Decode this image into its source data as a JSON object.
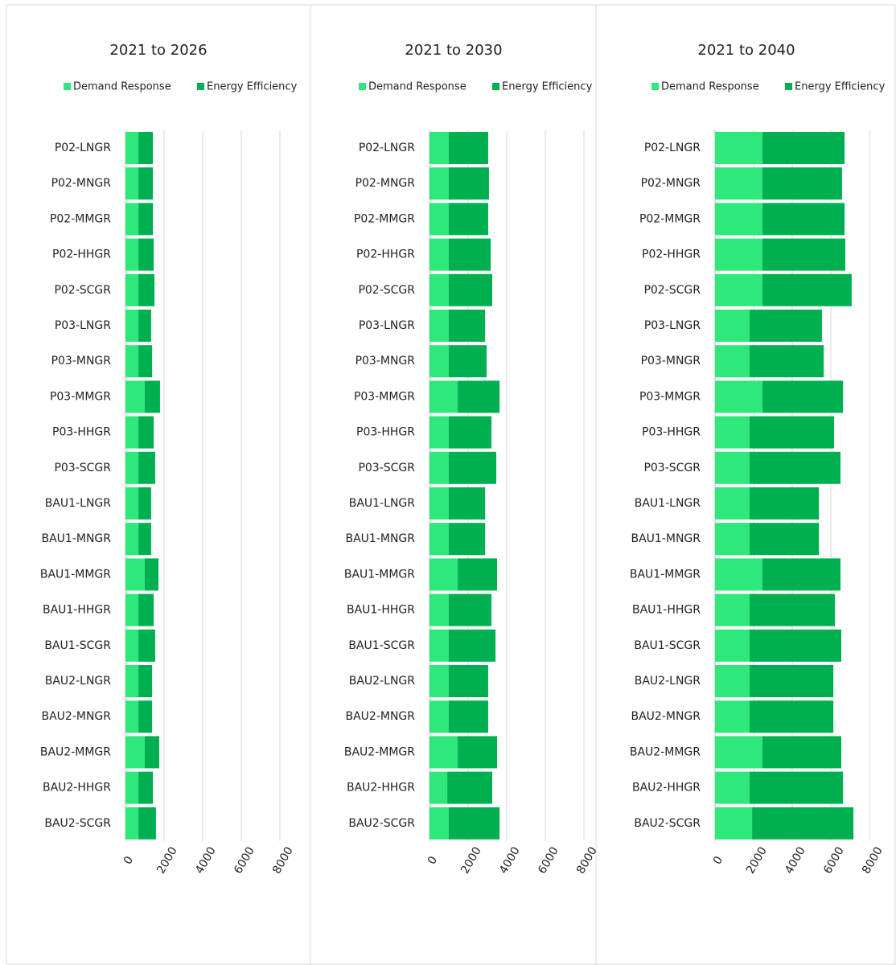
{
  "chart_data": [
    {
      "type": "hbar-stacked",
      "title": "2021 to 2026",
      "categories": [
        "P02-LNGR",
        "P02-MNGR",
        "P02-MMGR",
        "P02-HHGR",
        "P02-SCGR",
        "P03-LNGR",
        "P03-MNGR",
        "P03-MMGR",
        "P03-HHGR",
        "P03-SCGR",
        "BAU1-LNGR",
        "BAU1-MNGR",
        "BAU1-MMGR",
        "BAU1-HHGR",
        "BAU1-SCGR",
        "BAU2-LNGR",
        "BAU2-MNGR",
        "BAU2-MMGR",
        "BAU2-HHGR",
        "BAU2-SCGR"
      ],
      "series": [
        {
          "name": "Demand Response",
          "color": "#2ee87a",
          "values": [
            670,
            670,
            670,
            670,
            670,
            670,
            670,
            1000,
            670,
            670,
            670,
            670,
            1000,
            670,
            670,
            670,
            670,
            1000,
            670,
            670
          ]
        },
        {
          "name": "Energy Efficiency",
          "color": "#00b050",
          "values": [
            750,
            750,
            750,
            790,
            830,
            660,
            710,
            790,
            790,
            870,
            660,
            660,
            710,
            790,
            870,
            710,
            710,
            750,
            750,
            910
          ]
        }
      ],
      "xlim": [
        0,
        8000
      ],
      "xticks": [
        0,
        2000,
        4000,
        6000,
        8000
      ],
      "grid": true,
      "legend": "top"
    },
    {
      "type": "hbar-stacked",
      "title": "2021 to 2030",
      "categories": [
        "P02-LNGR",
        "P02-MNGR",
        "P02-MMGR",
        "P02-HHGR",
        "P02-SCGR",
        "P03-LNGR",
        "P03-MNGR",
        "P03-MMGR",
        "P03-HHGR",
        "P03-SCGR",
        "BAU1-LNGR",
        "BAU1-MNGR",
        "BAU1-MMGR",
        "BAU1-HHGR",
        "BAU1-SCGR",
        "BAU2-LNGR",
        "BAU2-MNGR",
        "BAU2-MMGR",
        "BAU2-HHGR",
        "BAU2-SCGR"
      ],
      "series": [
        {
          "name": "Demand Response",
          "color": "#2ee87a",
          "values": [
            1000,
            1000,
            1000,
            1000,
            1000,
            1000,
            1000,
            1460,
            1000,
            1000,
            1000,
            1000,
            1460,
            1000,
            1000,
            1000,
            1000,
            1460,
            920,
            1000
          ]
        },
        {
          "name": "Energy Efficiency",
          "color": "#00b050",
          "values": [
            2040,
            2080,
            2040,
            2170,
            2250,
            1880,
            1960,
            2170,
            2210,
            2460,
            1880,
            1880,
            2040,
            2210,
            2420,
            2040,
            2040,
            2040,
            2330,
            2630
          ]
        }
      ],
      "xlim": [
        0,
        8000
      ],
      "xticks": [
        0,
        2000,
        4000,
        6000,
        8000
      ],
      "grid": true,
      "legend": "top"
    },
    {
      "type": "hbar-stacked",
      "title": "2021 to 2040",
      "categories": [
        "P02-LNGR",
        "P02-MNGR",
        "P02-MMGR",
        "P02-HHGR",
        "P02-SCGR",
        "P03-LNGR",
        "P03-MNGR",
        "P03-MMGR",
        "P03-HHGR",
        "P03-SCGR",
        "BAU1-LNGR",
        "BAU1-MNGR",
        "BAU1-MMGR",
        "BAU1-HHGR",
        "BAU1-SCGR",
        "BAU2-LNGR",
        "BAU2-MNGR",
        "BAU2-MMGR",
        "BAU2-HHGR",
        "BAU2-SCGR"
      ],
      "series": [
        {
          "name": "Demand Response",
          "color": "#2ee87a",
          "values": [
            2460,
            2460,
            2460,
            2460,
            2460,
            1790,
            1790,
            2460,
            1790,
            1790,
            1790,
            1790,
            2460,
            1790,
            1790,
            1790,
            1790,
            2460,
            1790,
            1920
          ]
        },
        {
          "name": "Energy Efficiency",
          "color": "#00b050",
          "values": [
            4250,
            4120,
            4250,
            4290,
            4620,
            3750,
            3840,
            4170,
            4380,
            4710,
            3590,
            3590,
            4040,
            4420,
            4750,
            4340,
            4340,
            4080,
            4840,
            5250
          ]
        }
      ],
      "xlim": [
        0,
        8000
      ],
      "xticks": [
        0,
        2000,
        4000,
        6000,
        8000
      ],
      "grid": true,
      "legend": "top"
    }
  ]
}
